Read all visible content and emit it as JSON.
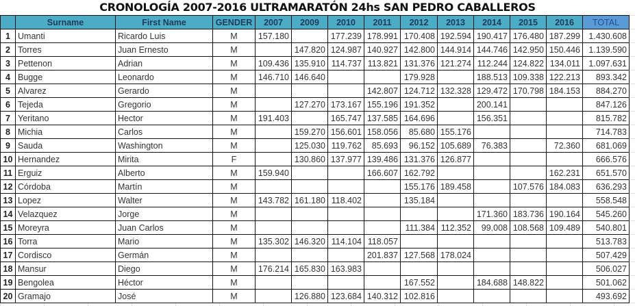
{
  "title": "CRONOLOGÍA 2007-2016 ULTRAMARATÓN 24hs SAN PEDRO CABALLEROS",
  "headers": [
    "",
    "Surname",
    "First Name",
    "GENDER",
    "2007",
    "2009",
    "2010",
    "2011",
    "2012",
    "2013",
    "2014",
    "2015",
    "2016",
    "TOTAL"
  ],
  "colors": {
    "header": "#4bacc6",
    "total_header": "#5b9bd5"
  },
  "rows": [
    [
      "1",
      "Umanti",
      "Ricardo Luis",
      "M",
      "157.180",
      "",
      "177.239",
      "178.991",
      "170.408",
      "192.594",
      "190.417",
      "176.480",
      "187.299",
      "1.430.608"
    ],
    [
      "2",
      "Torres",
      "Juan Ernesto",
      "M",
      "",
      "147.820",
      "124.987",
      "140.927",
      "142.800",
      "144.914",
      "144.746",
      "142.950",
      "150.446",
      "1.139.590"
    ],
    [
      "3",
      "Pettenon",
      "Adrian",
      "M",
      "109.436",
      "135.910",
      "114.737",
      "113.821",
      "131.376",
      "121.274",
      "112.244",
      "124.822",
      "134.011",
      "1.097.631"
    ],
    [
      "4",
      "Bugge",
      "Leonardo",
      "M",
      "146.710",
      "146.640",
      "",
      "",
      "179.928",
      "",
      "188.513",
      "109.338",
      "122.213",
      "893.342"
    ],
    [
      "5",
      "Alvarez",
      "Gerardo",
      "M",
      "",
      "",
      "",
      "142.807",
      "124.712",
      "132.328",
      "129.472",
      "170.798",
      "184.153",
      "884.270"
    ],
    [
      "6",
      "Tejeda",
      "Gregorio",
      "M",
      "",
      "127.270",
      "173.167",
      "155.196",
      "191.352",
      "",
      "200.141",
      "",
      "",
      "847.126"
    ],
    [
      "7",
      "Yeritano",
      "Hector",
      "M",
      "191.403",
      "",
      "165.747",
      "137.585",
      "164.696",
      "",
      "156.351",
      "",
      "",
      "815.782"
    ],
    [
      "8",
      "Michia",
      "Carlos",
      "M",
      "",
      "159.270",
      "156.601",
      "158.056",
      "85.680",
      "155.176",
      "",
      "",
      "",
      "714.783"
    ],
    [
      "9",
      "Sauda",
      "Washington",
      "M",
      "",
      "125.030",
      "119.762",
      "85.693",
      "96.152",
      "105.689",
      "76.383",
      "",
      "72.360",
      "681.069"
    ],
    [
      "10",
      "Hernandez",
      "Mirita",
      "F",
      "",
      "130.860",
      "137.977",
      "139.486",
      "131.376",
      "126.877",
      "",
      "",
      "",
      "666.576"
    ],
    [
      "11",
      "Erguiz",
      "Alberto",
      "M",
      "159.940",
      "",
      "",
      "166.607",
      "162.792",
      "",
      "",
      "",
      "162.231",
      "651.570"
    ],
    [
      "12",
      "Córdoba",
      "Martín",
      "M",
      "",
      "",
      "",
      "",
      "155.176",
      "189.458",
      "",
      "107.576",
      "184.083",
      "636.293"
    ],
    [
      "13",
      "Lopez",
      "Walter",
      "M",
      "143.782",
      "161.180",
      "118.402",
      "",
      "135.184",
      "",
      "",
      "",
      "",
      "558.548"
    ],
    [
      "14",
      "Velazquez",
      "Jorge",
      "M",
      "",
      "",
      "",
      "",
      "",
      "",
      "171.360",
      "183.736",
      "190.164",
      "545.260"
    ],
    [
      "15",
      "Moreyra",
      "Juan Carlos",
      "M",
      "",
      "",
      "",
      "",
      "111.384",
      "112.352",
      "99.008",
      "108.568",
      "109.489",
      "540.801"
    ],
    [
      "16",
      "Torra",
      "Mario",
      "M",
      "135.302",
      "146.320",
      "114.104",
      "118.057",
      "",
      "",
      "",
      "",
      "",
      "513.783"
    ],
    [
      "17",
      "Cordisco",
      "Germán",
      "M",
      "",
      "",
      "",
      "201.837",
      "127.568",
      "178.024",
      "",
      "",
      "",
      "507.429"
    ],
    [
      "18",
      "Mansur",
      "Diego",
      "M",
      "176.214",
      "165.830",
      "163.983",
      "",
      "",
      "",
      "",
      "",
      "",
      "506.027"
    ],
    [
      "19",
      "Bengolea",
      "Héctor",
      "M",
      "",
      "",
      "",
      "",
      "167.552",
      "",
      "184.688",
      "148.822",
      "",
      "501.062"
    ],
    [
      "20",
      "Gramajo",
      "José",
      "M",
      "",
      "126.880",
      "123.684",
      "140.312",
      "102.816",
      "",
      "",
      "",
      "",
      "493.692"
    ]
  ]
}
